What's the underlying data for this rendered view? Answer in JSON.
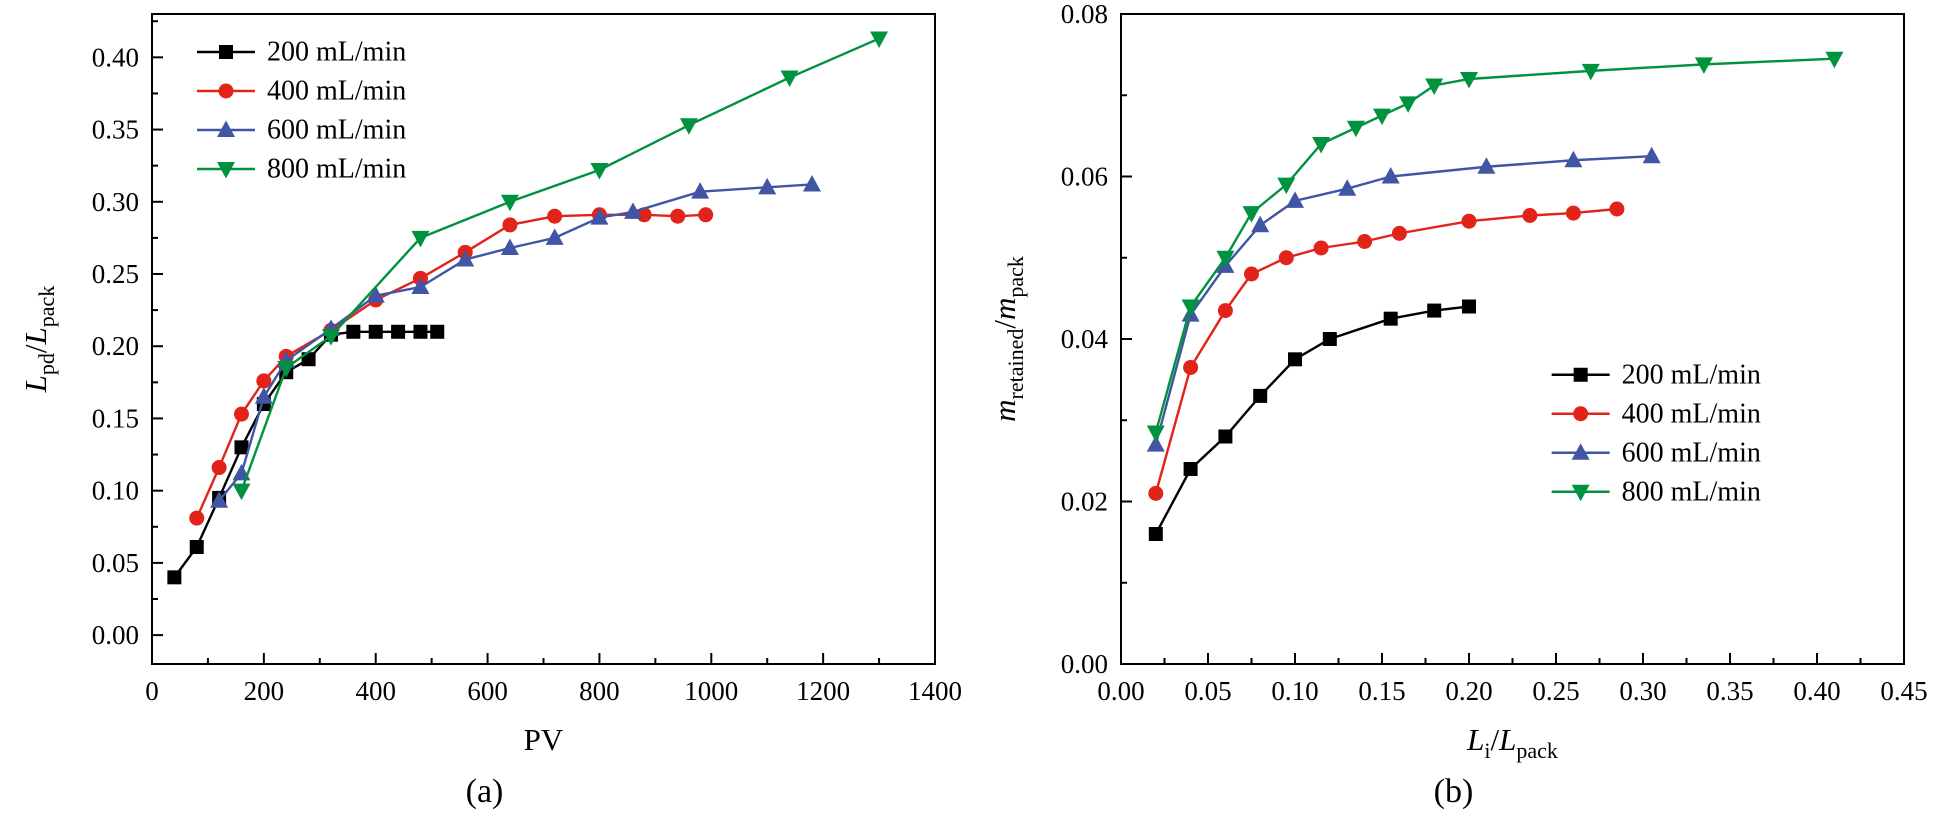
{
  "chart_data": [
    {
      "id": "a",
      "caption": "(a)",
      "type": "line",
      "xlabel_parts": [
        {
          "t": "PV"
        }
      ],
      "ylabel_parts": [
        {
          "t": "L",
          "i": true
        },
        {
          "t": "pd",
          "sub": true
        },
        {
          "t": "/"
        },
        {
          "t": "L",
          "i": true
        },
        {
          "t": "pack",
          "sub": true
        }
      ],
      "xlim": [
        0,
        1400
      ],
      "ylim": [
        -0.02,
        0.43
      ],
      "xticks": {
        "start": 0,
        "end": 1400,
        "step": 200,
        "decimals": 0
      },
      "yticks": {
        "start": 0.0,
        "end": 0.4,
        "step": 0.05,
        "decimals": 2
      },
      "minor_ticks": true,
      "grid": false,
      "legend": {
        "position": "top-left"
      },
      "series": [
        {
          "name": "200 mL/min",
          "color": "#000000",
          "marker": "square",
          "x": [
            40,
            80,
            120,
            160,
            200,
            240,
            280,
            320,
            360,
            400,
            440,
            480,
            510
          ],
          "y": [
            0.04,
            0.061,
            0.095,
            0.13,
            0.16,
            0.182,
            0.191,
            0.208,
            0.21,
            0.21,
            0.21,
            0.21,
            0.21
          ]
        },
        {
          "name": "400 mL/min",
          "color": "#e2231a",
          "marker": "circle",
          "x": [
            80,
            120,
            160,
            200,
            240,
            320,
            400,
            480,
            560,
            640,
            720,
            800,
            880,
            940,
            990
          ],
          "y": [
            0.081,
            0.116,
            0.153,
            0.176,
            0.193,
            0.211,
            0.232,
            0.247,
            0.265,
            0.284,
            0.29,
            0.291,
            0.291,
            0.29,
            0.291
          ]
        },
        {
          "name": "600 mL/min",
          "color": "#4055a3",
          "marker": "triangle-up",
          "x": [
            120,
            160,
            200,
            240,
            320,
            400,
            480,
            560,
            640,
            720,
            800,
            860,
            980,
            1100,
            1180
          ],
          "y": [
            0.093,
            0.112,
            0.165,
            0.19,
            0.212,
            0.235,
            0.241,
            0.26,
            0.268,
            0.275,
            0.289,
            0.293,
            0.307,
            0.31,
            0.312
          ]
        },
        {
          "name": "800 mL/min",
          "color": "#00923f",
          "marker": "triangle-down",
          "x": [
            160,
            240,
            320,
            480,
            640,
            800,
            960,
            1140,
            1300
          ],
          "y": [
            0.1,
            0.185,
            0.207,
            0.275,
            0.3,
            0.322,
            0.353,
            0.386,
            0.413
          ]
        }
      ]
    },
    {
      "id": "b",
      "caption": "(b)",
      "type": "line",
      "xlabel_parts": [
        {
          "t": "L",
          "i": true
        },
        {
          "t": "i",
          "sub": true
        },
        {
          "t": "/"
        },
        {
          "t": "L",
          "i": true
        },
        {
          "t": "pack",
          "sub": true
        }
      ],
      "ylabel_parts": [
        {
          "t": "m",
          "i": true
        },
        {
          "t": "retained",
          "sub": true
        },
        {
          "t": "/"
        },
        {
          "t": "m",
          "i": true
        },
        {
          "t": "pack",
          "sub": true
        }
      ],
      "xlim": [
        0,
        0.45
      ],
      "ylim": [
        0,
        0.08
      ],
      "xticks": {
        "start": 0.0,
        "end": 0.45,
        "step": 0.05,
        "decimals": 2
      },
      "yticks": {
        "start": 0.0,
        "end": 0.08,
        "step": 0.02,
        "decimals": 2
      },
      "minor_ticks": true,
      "grid": false,
      "legend": {
        "position": "bottom-right"
      },
      "series": [
        {
          "name": "200 mL/min",
          "color": "#000000",
          "marker": "square",
          "x": [
            0.02,
            0.04,
            0.06,
            0.08,
            0.1,
            0.12,
            0.155,
            0.18,
            0.2
          ],
          "y": [
            0.016,
            0.024,
            0.028,
            0.033,
            0.0375,
            0.04,
            0.0425,
            0.0435,
            0.044
          ]
        },
        {
          "name": "400 mL/min",
          "color": "#e2231a",
          "marker": "circle",
          "x": [
            0.02,
            0.04,
            0.06,
            0.075,
            0.095,
            0.115,
            0.14,
            0.16,
            0.2,
            0.235,
            0.26,
            0.285
          ],
          "y": [
            0.021,
            0.0365,
            0.0435,
            0.048,
            0.05,
            0.0512,
            0.052,
            0.053,
            0.0545,
            0.0552,
            0.0555,
            0.056
          ]
        },
        {
          "name": "600 mL/min",
          "color": "#4055a3",
          "marker": "triangle-up",
          "x": [
            0.02,
            0.04,
            0.06,
            0.08,
            0.1,
            0.13,
            0.155,
            0.21,
            0.26,
            0.305
          ],
          "y": [
            0.027,
            0.043,
            0.049,
            0.054,
            0.057,
            0.0585,
            0.06,
            0.0612,
            0.062,
            0.0625
          ]
        },
        {
          "name": "800 mL/min",
          "color": "#00923f",
          "marker": "triangle-down",
          "x": [
            0.02,
            0.04,
            0.06,
            0.075,
            0.095,
            0.115,
            0.135,
            0.15,
            0.165,
            0.18,
            0.2,
            0.27,
            0.335,
            0.41
          ],
          "y": [
            0.0285,
            0.044,
            0.05,
            0.0555,
            0.059,
            0.064,
            0.066,
            0.0675,
            0.069,
            0.0712,
            0.072,
            0.073,
            0.0738,
            0.0745
          ]
        }
      ]
    }
  ]
}
